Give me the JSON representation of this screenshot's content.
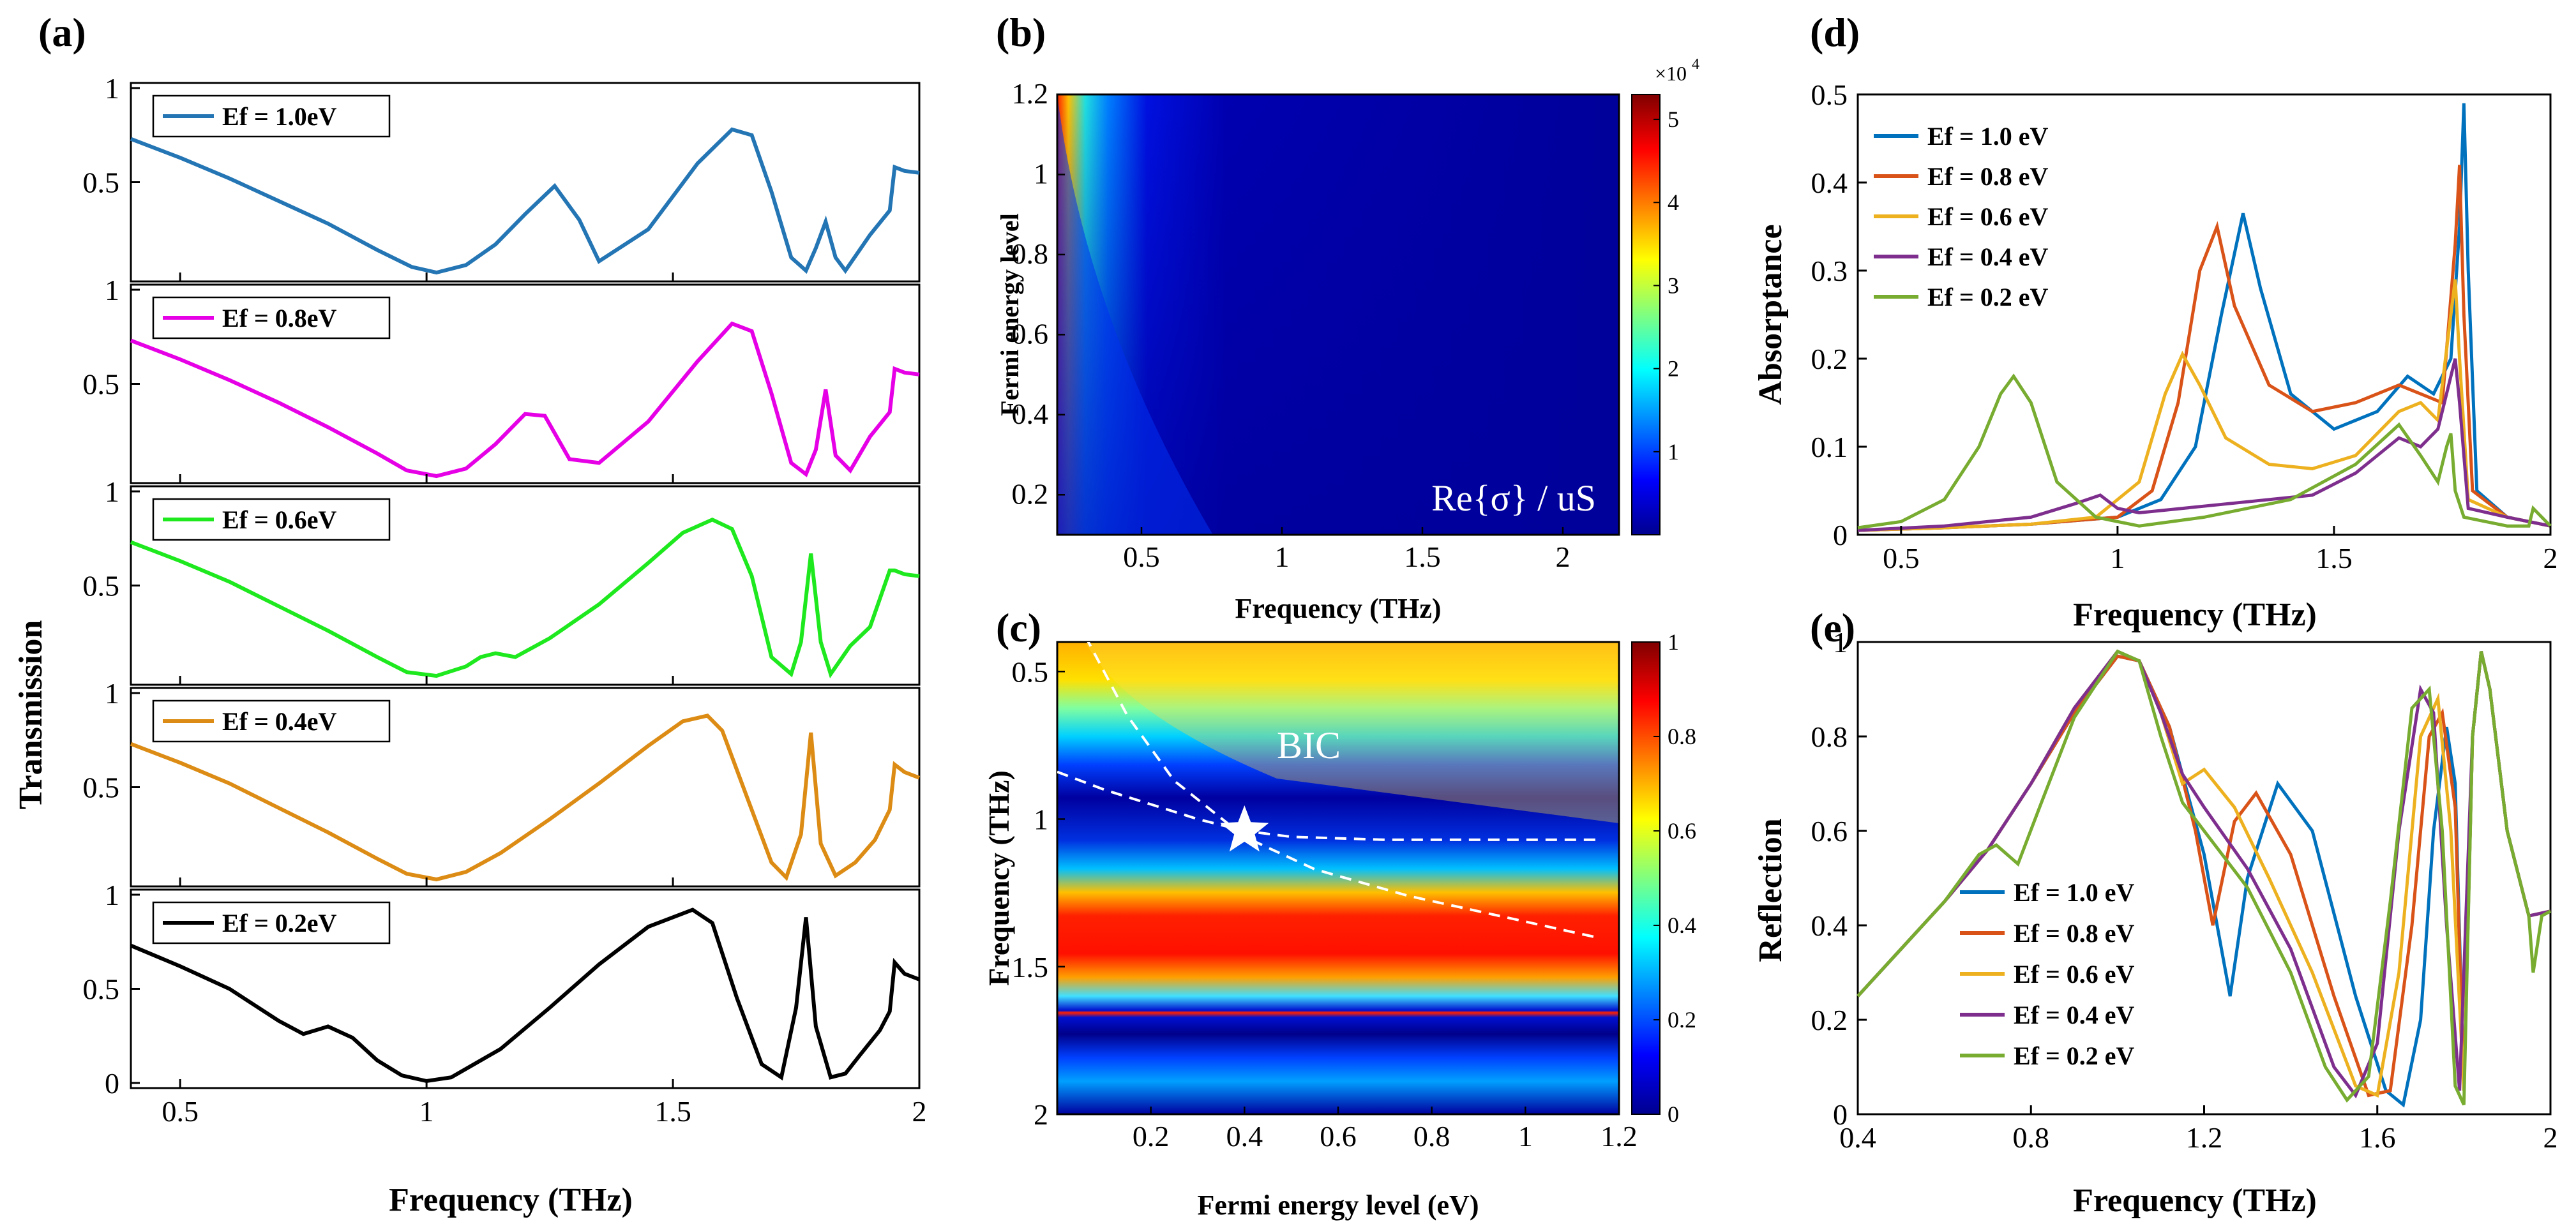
{
  "chart_data": [
    {
      "panel": "(a)",
      "type": "line",
      "xlabel": "Frequency (THz)",
      "ylabel": "Transmission",
      "xlim": [
        0.4,
        2.0
      ],
      "ylim": [
        0,
        1
      ],
      "x_ticks": [
        "0.5",
        "1",
        "1.5",
        "2"
      ],
      "y_ticks": [
        "0",
        "0.5",
        "1"
      ],
      "subplots": [
        {
          "name": "Ef = 1.0eV",
          "color": "#2475b4",
          "x": [
            0.4,
            0.5,
            0.6,
            0.7,
            0.8,
            0.9,
            0.97,
            1.02,
            1.08,
            1.14,
            1.2,
            1.26,
            1.31,
            1.35,
            1.45,
            1.55,
            1.62,
            1.66,
            1.7,
            1.74,
            1.77,
            1.79,
            1.81,
            1.83,
            1.85,
            1.9,
            1.94,
            1.95,
            1.97,
            2.0
          ],
          "y": [
            0.73,
            0.63,
            0.52,
            0.4,
            0.28,
            0.14,
            0.05,
            0.02,
            0.06,
            0.17,
            0.33,
            0.48,
            0.3,
            0.08,
            0.25,
            0.6,
            0.78,
            0.75,
            0.45,
            0.1,
            0.03,
            0.15,
            0.29,
            0.1,
            0.03,
            0.22,
            0.35,
            0.58,
            0.56,
            0.55
          ]
        },
        {
          "name": "Ef = 0.8eV",
          "color": "#e600e6",
          "x": [
            0.4,
            0.5,
            0.6,
            0.7,
            0.8,
            0.9,
            0.96,
            1.02,
            1.08,
            1.14,
            1.2,
            1.24,
            1.29,
            1.35,
            1.45,
            1.55,
            1.62,
            1.66,
            1.7,
            1.74,
            1.77,
            1.79,
            1.81,
            1.83,
            1.86,
            1.9,
            1.94,
            1.95,
            1.97,
            2.0
          ],
          "y": [
            0.73,
            0.63,
            0.52,
            0.4,
            0.27,
            0.13,
            0.04,
            0.01,
            0.05,
            0.18,
            0.34,
            0.33,
            0.1,
            0.08,
            0.3,
            0.62,
            0.82,
            0.78,
            0.45,
            0.08,
            0.02,
            0.15,
            0.47,
            0.12,
            0.04,
            0.22,
            0.35,
            0.58,
            0.56,
            0.55
          ]
        },
        {
          "name": "Ef = 0.6eV",
          "color": "#1ee81e",
          "x": [
            0.4,
            0.5,
            0.6,
            0.7,
            0.8,
            0.9,
            0.96,
            1.02,
            1.08,
            1.11,
            1.14,
            1.18,
            1.25,
            1.35,
            1.45,
            1.52,
            1.58,
            1.62,
            1.66,
            1.7,
            1.74,
            1.76,
            1.78,
            1.8,
            1.82,
            1.86,
            1.9,
            1.94,
            1.95,
            1.97,
            2.0
          ],
          "y": [
            0.73,
            0.63,
            0.52,
            0.39,
            0.26,
            0.12,
            0.04,
            0.02,
            0.07,
            0.12,
            0.14,
            0.12,
            0.22,
            0.4,
            0.62,
            0.78,
            0.85,
            0.8,
            0.55,
            0.12,
            0.03,
            0.2,
            0.67,
            0.2,
            0.03,
            0.18,
            0.28,
            0.58,
            0.58,
            0.56,
            0.55
          ]
        },
        {
          "name": "Ef = 0.4eV",
          "color": "#dc8c14",
          "x": [
            0.4,
            0.5,
            0.6,
            0.7,
            0.8,
            0.9,
            0.96,
            1.02,
            1.08,
            1.15,
            1.25,
            1.35,
            1.45,
            1.52,
            1.57,
            1.6,
            1.65,
            1.7,
            1.73,
            1.76,
            1.78,
            1.8,
            1.83,
            1.87,
            1.91,
            1.94,
            1.95,
            1.97,
            2.0
          ],
          "y": [
            0.73,
            0.63,
            0.52,
            0.39,
            0.26,
            0.12,
            0.04,
            0.01,
            0.05,
            0.15,
            0.33,
            0.52,
            0.72,
            0.85,
            0.88,
            0.8,
            0.45,
            0.1,
            0.02,
            0.25,
            0.79,
            0.2,
            0.03,
            0.1,
            0.22,
            0.38,
            0.62,
            0.58,
            0.55
          ]
        },
        {
          "name": "Ef = 0.2eV",
          "color": "#000000",
          "x": [
            0.4,
            0.5,
            0.6,
            0.7,
            0.75,
            0.8,
            0.85,
            0.9,
            0.95,
            1.0,
            1.05,
            1.15,
            1.25,
            1.35,
            1.45,
            1.54,
            1.58,
            1.63,
            1.68,
            1.72,
            1.75,
            1.77,
            1.79,
            1.82,
            1.85,
            1.88,
            1.92,
            1.94,
            1.95,
            1.97,
            2.0
          ],
          "y": [
            0.73,
            0.62,
            0.5,
            0.33,
            0.26,
            0.3,
            0.24,
            0.12,
            0.04,
            0.01,
            0.03,
            0.18,
            0.4,
            0.63,
            0.83,
            0.92,
            0.85,
            0.45,
            0.1,
            0.03,
            0.4,
            0.88,
            0.3,
            0.03,
            0.05,
            0.15,
            0.28,
            0.38,
            0.64,
            0.58,
            0.55
          ]
        }
      ]
    },
    {
      "panel": "(b)",
      "type": "heatmap",
      "xlabel": "Frequency (THz)",
      "ylabel": "Fermi energy level",
      "xlim": [
        0.2,
        2.2
      ],
      "ylim": [
        0.1,
        1.2
      ],
      "x_ticks": [
        "0.5",
        "1",
        "1.5",
        "2"
      ],
      "y_ticks": [
        "0.2",
        "0.4",
        "0.6",
        "0.8",
        "1",
        "1.2"
      ],
      "annotation": "Re{σ} / uS",
      "colorbar": {
        "scale_label": "×10",
        "scale_exponent": "4",
        "ticks": [
          "1",
          "2",
          "3",
          "4",
          "5"
        ],
        "range": [
          0,
          5.3
        ]
      }
    },
    {
      "panel": "(c)",
      "type": "heatmap",
      "xlabel": "Fermi energy level (eV)",
      "ylabel": "Frequency (THz)",
      "xlim": [
        0,
        1.2
      ],
      "ylim": [
        0.4,
        2.0
      ],
      "x_ticks": [
        "0.2",
        "0.4",
        "0.6",
        "0.8",
        "1",
        "1.2"
      ],
      "y_ticks": [
        "0.5",
        "1",
        "1.5",
        "2"
      ],
      "annotation": "BIC",
      "bic_point": [
        0.4,
        1.04
      ],
      "colorbar": {
        "ticks": [
          "0",
          "0.2",
          "0.4",
          "0.6",
          "0.8",
          "1"
        ],
        "range": [
          0,
          1
        ]
      },
      "dashed_curves": [
        {
          "x": [
            0.06,
            0.15,
            0.25,
            0.4,
            0.55,
            0.75,
            0.95,
            1.15
          ],
          "y": [
            0.38,
            0.65,
            0.87,
            1.06,
            1.17,
            1.26,
            1.33,
            1.4
          ]
        },
        {
          "x": [
            0.0,
            0.1,
            0.2,
            0.3,
            0.4,
            0.5,
            0.7,
            0.9,
            1.15
          ],
          "y": [
            0.84,
            0.9,
            0.95,
            1.0,
            1.04,
            1.06,
            1.07,
            1.07,
            1.07
          ]
        }
      ]
    },
    {
      "panel": "(d)",
      "type": "line",
      "xlabel": "Frequency (THz)",
      "ylabel": "Absorptance",
      "xlim": [
        0.4,
        2.0
      ],
      "ylim": [
        0,
        0.5
      ],
      "x_ticks": [
        "0.5",
        "1",
        "1.5",
        "2"
      ],
      "y_ticks": [
        "0",
        "0.1",
        "0.2",
        "0.3",
        "0.4",
        "0.5"
      ],
      "series": [
        {
          "name": "Ef = 1.0 eV",
          "color": "#0072bd",
          "x": [
            0.4,
            0.6,
            0.8,
            1.0,
            1.1,
            1.18,
            1.24,
            1.29,
            1.33,
            1.4,
            1.5,
            1.6,
            1.67,
            1.73,
            1.77,
            1.79,
            1.8,
            1.81,
            1.83,
            1.9,
            2.0
          ],
          "y": [
            0.005,
            0.008,
            0.012,
            0.02,
            0.04,
            0.1,
            0.25,
            0.365,
            0.28,
            0.16,
            0.12,
            0.14,
            0.18,
            0.16,
            0.2,
            0.35,
            0.49,
            0.3,
            0.05,
            0.02,
            0.01
          ]
        },
        {
          "name": "Ef = 0.8 eV",
          "color": "#d95319",
          "x": [
            0.4,
            0.6,
            0.8,
            1.0,
            1.08,
            1.14,
            1.19,
            1.23,
            1.27,
            1.35,
            1.45,
            1.55,
            1.65,
            1.7,
            1.75,
            1.78,
            1.79,
            1.8,
            1.82,
            1.9,
            2.0
          ],
          "y": [
            0.005,
            0.008,
            0.012,
            0.02,
            0.05,
            0.15,
            0.3,
            0.35,
            0.26,
            0.17,
            0.14,
            0.15,
            0.17,
            0.16,
            0.15,
            0.33,
            0.42,
            0.25,
            0.05,
            0.02,
            0.01
          ]
        },
        {
          "name": "Ef = 0.6 eV",
          "color": "#edb120",
          "x": [
            0.4,
            0.6,
            0.8,
            0.95,
            1.05,
            1.11,
            1.15,
            1.19,
            1.25,
            1.35,
            1.45,
            1.55,
            1.65,
            1.7,
            1.74,
            1.77,
            1.78,
            1.79,
            1.81,
            1.9,
            2.0
          ],
          "y": [
            0.005,
            0.008,
            0.012,
            0.02,
            0.06,
            0.16,
            0.205,
            0.17,
            0.11,
            0.08,
            0.075,
            0.09,
            0.14,
            0.15,
            0.13,
            0.25,
            0.29,
            0.2,
            0.04,
            0.02,
            0.01
          ]
        },
        {
          "name": "Ef = 0.4 eV",
          "color": "#7e2f8e",
          "x": [
            0.4,
            0.6,
            0.8,
            0.9,
            0.96,
            1.0,
            1.05,
            1.15,
            1.25,
            1.35,
            1.45,
            1.55,
            1.65,
            1.7,
            1.74,
            1.77,
            1.78,
            1.79,
            1.81,
            1.9,
            2.0
          ],
          "y": [
            0.005,
            0.01,
            0.02,
            0.035,
            0.045,
            0.03,
            0.025,
            0.03,
            0.035,
            0.04,
            0.045,
            0.07,
            0.11,
            0.1,
            0.12,
            0.18,
            0.2,
            0.15,
            0.03,
            0.02,
            0.01
          ]
        },
        {
          "name": "Ef = 0.2 eV",
          "color": "#77ac30",
          "x": [
            0.4,
            0.5,
            0.6,
            0.68,
            0.73,
            0.76,
            0.8,
            0.86,
            0.95,
            1.05,
            1.2,
            1.4,
            1.55,
            1.65,
            1.7,
            1.74,
            1.76,
            1.77,
            1.78,
            1.8,
            1.9,
            1.95,
            1.96,
            2.0
          ],
          "y": [
            0.008,
            0.015,
            0.04,
            0.1,
            0.16,
            0.18,
            0.15,
            0.06,
            0.02,
            0.01,
            0.02,
            0.04,
            0.08,
            0.125,
            0.09,
            0.06,
            0.1,
            0.115,
            0.05,
            0.02,
            0.01,
            0.01,
            0.03,
            0.01
          ]
        }
      ]
    },
    {
      "panel": "(e)",
      "type": "line",
      "xlabel": "Frequency (THz)",
      "ylabel": "Reflection",
      "xlim": [
        0.4,
        2.0
      ],
      "ylim": [
        0,
        1
      ],
      "x_ticks": [
        "0.4",
        "0.8",
        "1.2",
        "1.6",
        "2"
      ],
      "y_ticks": [
        "0",
        "0.2",
        "0.4",
        "0.6",
        "0.8",
        "1"
      ],
      "series": [
        {
          "name": "Ef = 1.0 eV",
          "color": "#0072bd",
          "x": [
            0.4,
            0.5,
            0.6,
            0.7,
            0.8,
            0.9,
            1.0,
            1.05,
            1.12,
            1.2,
            1.26,
            1.3,
            1.37,
            1.45,
            1.55,
            1.62,
            1.66,
            1.7,
            1.73,
            1.76,
            1.78,
            1.8,
            1.82,
            1.84,
            1.86,
            1.9,
            1.95,
            2.0
          ],
          "y": [
            0.25,
            0.35,
            0.45,
            0.56,
            0.7,
            0.85,
            0.97,
            0.96,
            0.82,
            0.55,
            0.25,
            0.5,
            0.7,
            0.6,
            0.25,
            0.05,
            0.02,
            0.2,
            0.6,
            0.82,
            0.7,
            0.05,
            0.8,
            0.98,
            0.9,
            0.6,
            0.42,
            0.43
          ]
        },
        {
          "name": "Ef = 0.8 eV",
          "color": "#d95319",
          "x": [
            0.4,
            0.5,
            0.6,
            0.7,
            0.8,
            0.9,
            1.0,
            1.05,
            1.12,
            1.18,
            1.22,
            1.27,
            1.32,
            1.4,
            1.5,
            1.58,
            1.63,
            1.68,
            1.72,
            1.75,
            1.78,
            1.8,
            1.82,
            1.84,
            1.86,
            1.9,
            1.95,
            2.0
          ],
          "y": [
            0.25,
            0.35,
            0.45,
            0.56,
            0.7,
            0.85,
            0.97,
            0.96,
            0.82,
            0.6,
            0.4,
            0.62,
            0.68,
            0.55,
            0.25,
            0.04,
            0.05,
            0.4,
            0.8,
            0.85,
            0.65,
            0.05,
            0.8,
            0.98,
            0.9,
            0.6,
            0.42,
            0.43
          ]
        },
        {
          "name": "Ef = 0.6 eV",
          "color": "#edb120",
          "x": [
            0.4,
            0.5,
            0.6,
            0.7,
            0.8,
            0.9,
            1.0,
            1.05,
            1.1,
            1.15,
            1.2,
            1.27,
            1.35,
            1.45,
            1.55,
            1.6,
            1.65,
            1.7,
            1.74,
            1.77,
            1.8,
            1.82,
            1.84,
            1.86,
            1.9,
            1.95,
            2.0
          ],
          "y": [
            0.25,
            0.35,
            0.45,
            0.56,
            0.7,
            0.86,
            0.98,
            0.96,
            0.85,
            0.7,
            0.73,
            0.65,
            0.5,
            0.3,
            0.06,
            0.04,
            0.3,
            0.8,
            0.88,
            0.6,
            0.05,
            0.8,
            0.98,
            0.9,
            0.6,
            0.42,
            0.43
          ]
        },
        {
          "name": "Ef = 0.4 eV",
          "color": "#7e2f8e",
          "x": [
            0.4,
            0.5,
            0.6,
            0.7,
            0.8,
            0.9,
            1.0,
            1.05,
            1.1,
            1.15,
            1.2,
            1.3,
            1.4,
            1.5,
            1.55,
            1.6,
            1.65,
            1.7,
            1.73,
            1.76,
            1.79,
            1.82,
            1.84,
            1.86,
            1.9,
            1.95,
            2.0
          ],
          "y": [
            0.25,
            0.35,
            0.45,
            0.56,
            0.7,
            0.86,
            0.98,
            0.96,
            0.85,
            0.72,
            0.65,
            0.52,
            0.35,
            0.1,
            0.04,
            0.15,
            0.6,
            0.9,
            0.85,
            0.4,
            0.05,
            0.8,
            0.98,
            0.9,
            0.6,
            0.42,
            0.43
          ]
        },
        {
          "name": "Ef = 0.2 eV",
          "color": "#77ac30",
          "x": [
            0.4,
            0.5,
            0.6,
            0.68,
            0.72,
            0.77,
            0.82,
            0.9,
            1.0,
            1.05,
            1.1,
            1.15,
            1.2,
            1.3,
            1.4,
            1.48,
            1.53,
            1.58,
            1.63,
            1.68,
            1.72,
            1.75,
            1.78,
            1.8,
            1.82,
            1.84,
            1.86,
            1.9,
            1.95,
            1.96,
            1.98,
            2.0
          ],
          "y": [
            0.25,
            0.35,
            0.45,
            0.55,
            0.57,
            0.53,
            0.65,
            0.84,
            0.98,
            0.96,
            0.8,
            0.66,
            0.6,
            0.48,
            0.3,
            0.1,
            0.03,
            0.08,
            0.45,
            0.86,
            0.9,
            0.6,
            0.06,
            0.02,
            0.8,
            0.98,
            0.9,
            0.6,
            0.42,
            0.3,
            0.42,
            0.43
          ]
        }
      ]
    }
  ]
}
